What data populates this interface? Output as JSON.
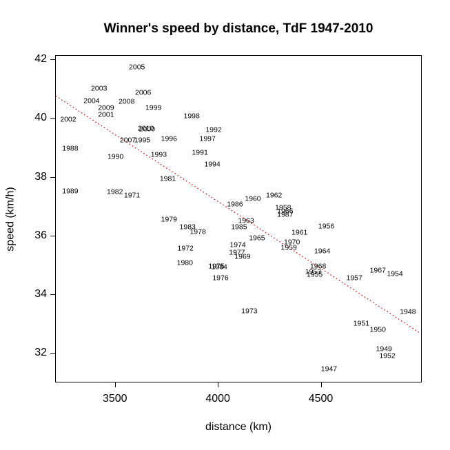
{
  "title": "Winner's speed by distance, TdF 1947-2010",
  "chart_data": {
    "type": "scatter",
    "title": "Winner's speed by distance, TdF 1947-2010",
    "xlabel": "distance (km)",
    "ylabel": "speed (km/h)",
    "xlim": [
      3213,
      4987
    ],
    "ylim": [
      31.02,
      42.12
    ],
    "x_ticks": [
      3500,
      4000,
      4500
    ],
    "y_ticks": [
      32,
      34,
      36,
      38,
      40,
      42
    ],
    "grid": false,
    "legend": "none",
    "marker": "year-text-labels",
    "points": [
      {
        "year": "1947",
        "distance": 4540,
        "speed": 31.44
      },
      {
        "year": "1948",
        "distance": 4923,
        "speed": 33.4
      },
      {
        "year": "1949",
        "distance": 4807,
        "speed": 32.12
      },
      {
        "year": "1950",
        "distance": 4777,
        "speed": 32.79
      },
      {
        "year": "1951",
        "distance": 4697,
        "speed": 32.98
      },
      {
        "year": "1952",
        "distance": 4823,
        "speed": 31.88
      },
      {
        "year": "1953",
        "distance": 4463,
        "speed": 34.76
      },
      {
        "year": "1954",
        "distance": 4860,
        "speed": 34.69
      },
      {
        "year": "1955",
        "distance": 4470,
        "speed": 34.66
      },
      {
        "year": "1956",
        "distance": 4527,
        "speed": 36.3
      },
      {
        "year": "1957",
        "distance": 4663,
        "speed": 34.55
      },
      {
        "year": "1958",
        "distance": 4317,
        "speed": 36.93
      },
      {
        "year": "1959",
        "distance": 4345,
        "speed": 35.57
      },
      {
        "year": "1960",
        "distance": 4170,
        "speed": 37.23
      },
      {
        "year": "1961",
        "distance": 4397,
        "speed": 36.09
      },
      {
        "year": "1962",
        "distance": 4273,
        "speed": 37.35
      },
      {
        "year": "1963",
        "distance": 4137,
        "speed": 36.49
      },
      {
        "year": "1964",
        "distance": 4507,
        "speed": 35.46
      },
      {
        "year": "1965",
        "distance": 4190,
        "speed": 35.9
      },
      {
        "year": "1966",
        "distance": 4327,
        "speed": 36.82
      },
      {
        "year": "1967",
        "distance": 4777,
        "speed": 34.8
      },
      {
        "year": "1968",
        "distance": 4487,
        "speed": 34.94
      },
      {
        "year": "1969",
        "distance": 4120,
        "speed": 35.27
      },
      {
        "year": "1970",
        "distance": 4360,
        "speed": 35.75
      },
      {
        "year": "1971",
        "distance": 3583,
        "speed": 37.35
      },
      {
        "year": "1972",
        "distance": 3843,
        "speed": 35.55
      },
      {
        "year": "1973",
        "distance": 4153,
        "speed": 33.42
      },
      {
        "year": "1974",
        "distance": 4097,
        "speed": 35.67
      },
      {
        "year": "1975",
        "distance": 3993,
        "speed": 34.94
      },
      {
        "year": "1976",
        "distance": 4013,
        "speed": 34.55
      },
      {
        "year": "1977",
        "distance": 4093,
        "speed": 35.41
      },
      {
        "year": "1978",
        "distance": 3903,
        "speed": 36.11
      },
      {
        "year": "1979",
        "distance": 3763,
        "speed": 36.53
      },
      {
        "year": "1980",
        "distance": 3840,
        "speed": 35.06
      },
      {
        "year": "1981",
        "distance": 3757,
        "speed": 37.91
      },
      {
        "year": "1982",
        "distance": 3500,
        "speed": 37.47
      },
      {
        "year": "1983",
        "distance": 3853,
        "speed": 36.28
      },
      {
        "year": "1984",
        "distance": 4007,
        "speed": 34.92
      },
      {
        "year": "1985",
        "distance": 4103,
        "speed": 36.28
      },
      {
        "year": "1986",
        "distance": 4083,
        "speed": 37.05
      },
      {
        "year": "1987",
        "distance": 4327,
        "speed": 36.7
      },
      {
        "year": "1988",
        "distance": 3283,
        "speed": 38.96
      },
      {
        "year": "1989",
        "distance": 3283,
        "speed": 37.49
      },
      {
        "year": "1990",
        "distance": 3503,
        "speed": 38.68
      },
      {
        "year": "1991",
        "distance": 3913,
        "speed": 38.8
      },
      {
        "year": "1992",
        "distance": 3980,
        "speed": 39.59
      },
      {
        "year": "1993",
        "distance": 3713,
        "speed": 38.75
      },
      {
        "year": "1994",
        "distance": 3973,
        "speed": 38.42
      },
      {
        "year": "1995",
        "distance": 3633,
        "speed": 39.24
      },
      {
        "year": "1996",
        "distance": 3763,
        "speed": 39.29
      },
      {
        "year": "1997",
        "distance": 3950,
        "speed": 39.29
      },
      {
        "year": "1998",
        "distance": 3873,
        "speed": 40.06
      },
      {
        "year": "1999",
        "distance": 3687,
        "speed": 40.34
      },
      {
        "year": "2000",
        "distance": 3656,
        "speed": 39.61
      },
      {
        "year": "2001",
        "distance": 3457,
        "speed": 40.11
      },
      {
        "year": "2002",
        "distance": 3273,
        "speed": 39.94
      },
      {
        "year": "2003",
        "distance": 3423,
        "speed": 41.0
      },
      {
        "year": "2004",
        "distance": 3387,
        "speed": 40.57
      },
      {
        "year": "2005",
        "distance": 3607,
        "speed": 41.72
      },
      {
        "year": "2006",
        "distance": 3637,
        "speed": 40.85
      },
      {
        "year": "2007",
        "distance": 3563,
        "speed": 39.24
      },
      {
        "year": "2008",
        "distance": 3557,
        "speed": 40.55
      },
      {
        "year": "2009",
        "distance": 3457,
        "speed": 40.34
      },
      {
        "year": "2010",
        "distance": 3650,
        "speed": 39.63
      }
    ],
    "trend_line": {
      "style": "dotted",
      "color": "#ee0000",
      "points": [
        {
          "distance": 3213,
          "speed": 40.75
        },
        {
          "distance": 4987,
          "speed": 32.66
        }
      ]
    }
  }
}
